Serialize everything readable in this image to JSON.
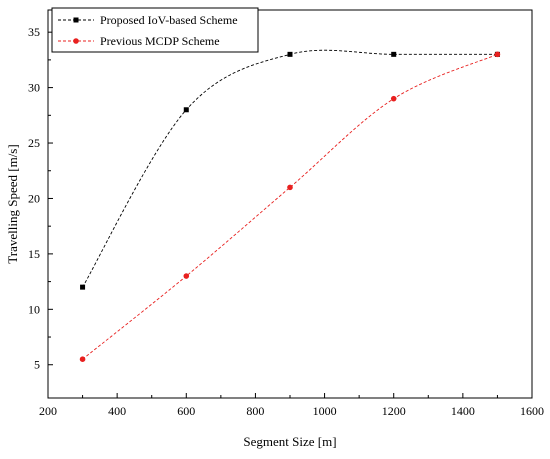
{
  "chart_data": {
    "type": "line",
    "title": "",
    "xlabel": "Segment Size [m]",
    "ylabel": "Travelling Speed [m/s]",
    "xlim": [
      200,
      1600
    ],
    "ylim": [
      2,
      37
    ],
    "xticks": [
      200,
      400,
      600,
      800,
      1000,
      1200,
      1400,
      1600
    ],
    "yticks": [
      5,
      10,
      15,
      20,
      25,
      30,
      35
    ],
    "grid": false,
    "legend_position": "top-left",
    "series": [
      {
        "name": "Proposed IoV-based Scheme",
        "color": "#000000",
        "marker": "square",
        "line_style": "dashed-smooth",
        "x": [
          300,
          600,
          900,
          1200,
          1500
        ],
        "y": [
          12,
          28,
          33,
          33,
          33
        ]
      },
      {
        "name": "Previous MCDP Scheme",
        "color": "#e8201f",
        "marker": "circle",
        "line_style": "dashed-smooth",
        "x": [
          300,
          600,
          900,
          1200,
          1500
        ],
        "y": [
          5.5,
          13,
          21,
          29,
          33
        ]
      }
    ]
  }
}
